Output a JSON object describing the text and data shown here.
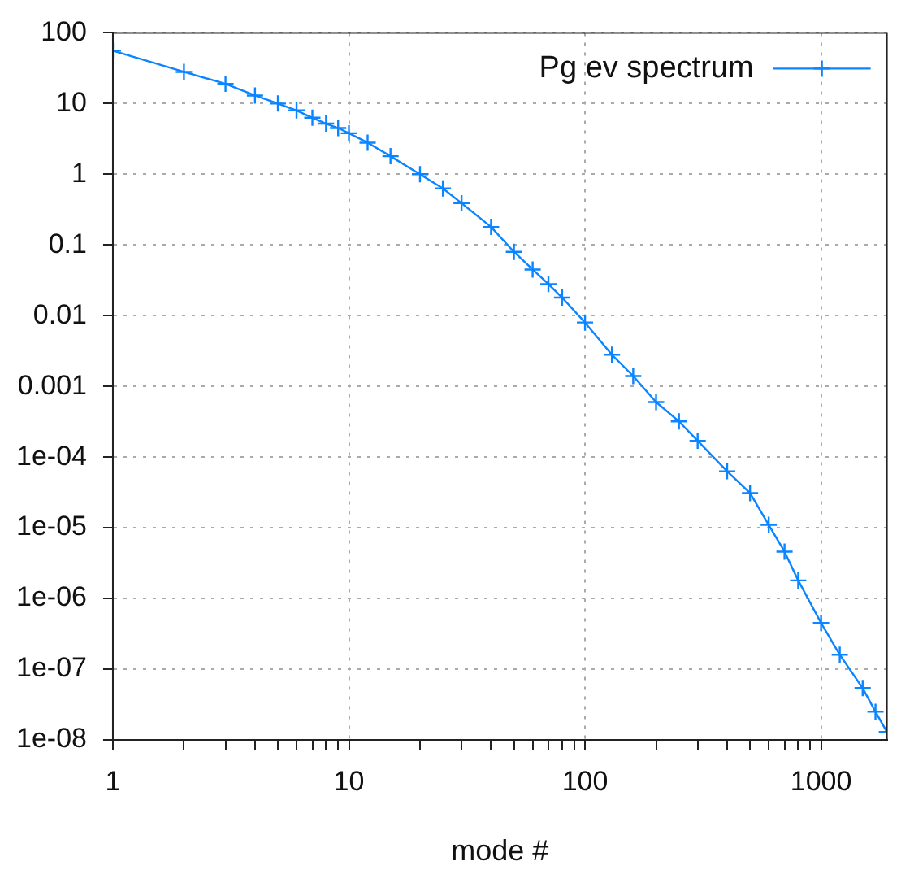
{
  "chart_data": {
    "type": "line",
    "xlabel": "mode #",
    "log": "xy",
    "grid": true,
    "legend": "top right",
    "marker": "cross",
    "line_style": "solid",
    "x": [
      1,
      2,
      3,
      4,
      5,
      6,
      7,
      8,
      9,
      10,
      12,
      15,
      20,
      25,
      30,
      40,
      50,
      60,
      70,
      80,
      100,
      130,
      160,
      200,
      250,
      300,
      400,
      500,
      600,
      700,
      800,
      1000,
      1200,
      1500,
      1700,
      1900
    ],
    "series": [
      {
        "name": "Pg ev spectrum",
        "color": "#0a84ff",
        "values": [
          56,
          28,
          19,
          13,
          10,
          8,
          6.3,
          5.2,
          4.5,
          3.8,
          2.8,
          1.8,
          1,
          0.63,
          0.39,
          0.18,
          0.08,
          0.045,
          0.028,
          0.018,
          0.008,
          0.0028,
          0.0014,
          0.0006,
          0.00032,
          0.00017,
          6.3e-05,
          3.1e-05,
          1.1e-05,
          4.6e-06,
          1.8e-06,
          4.5e-07,
          1.6e-07,
          5.4e-08,
          2.5e-08,
          1.3e-08
        ]
      }
    ],
    "xlim": [
      1,
      1900
    ],
    "ylim": [
      1e-08,
      100
    ],
    "xticks": [
      1,
      {
        "value": 2,
        "label": null
      },
      {
        "value": 3,
        "label": null
      },
      {
        "value": 4,
        "label": null
      },
      {
        "value": 5,
        "label": null
      },
      {
        "value": 6,
        "label": null
      },
      {
        "value": 7,
        "label": null
      },
      {
        "value": 8,
        "label": null
      },
      {
        "value": 9,
        "label": null
      },
      10,
      {
        "value": 20,
        "label": null
      },
      {
        "value": 30,
        "label": null
      },
      {
        "value": 40,
        "label": null
      },
      {
        "value": 50,
        "label": null
      },
      {
        "value": 60,
        "label": null
      },
      {
        "value": 70,
        "label": null
      },
      {
        "value": 80,
        "label": null
      },
      {
        "value": 90,
        "label": null
      },
      100,
      {
        "value": 200,
        "label": null
      },
      {
        "value": 300,
        "label": null
      },
      {
        "value": 400,
        "label": null
      },
      {
        "value": 500,
        "label": null
      },
      {
        "value": 600,
        "label": null
      },
      {
        "value": 700,
        "label": null
      },
      {
        "value": 800,
        "label": null
      },
      {
        "value": 900,
        "label": null
      },
      1000
    ],
    "yticks": [
      100,
      10,
      1,
      0.1,
      0.01,
      0.001,
      {
        "value": 0.0001,
        "label": "1e-04"
      },
      {
        "value": 1e-05,
        "label": "1e-05"
      },
      {
        "value": 1e-06,
        "label": "1e-06"
      },
      {
        "value": 1e-07,
        "label": "1e-07"
      },
      {
        "value": 1e-08,
        "label": "1e-08"
      }
    ]
  }
}
